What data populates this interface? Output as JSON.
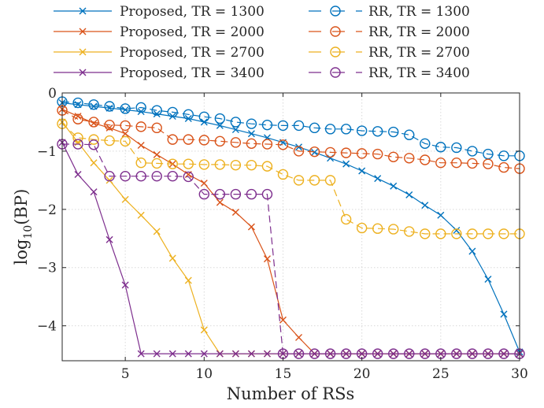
{
  "chart_data": {
    "type": "line",
    "title": "",
    "xlabel": "Number of RSs",
    "ylabel": "log10(BP)",
    "ylabel_base": "log",
    "ylabel_sub": "10",
    "ylabel_arg": "(BP)",
    "xlim": [
      1,
      30
    ],
    "ylim": [
      -4.6,
      0
    ],
    "xticks": [
      5,
      10,
      15,
      20,
      25,
      30
    ],
    "yticks": [
      0,
      -1,
      -2,
      -3,
      -4
    ],
    "ytick_labels": [
      "0",
      "−1",
      "−2",
      "−3",
      "−4"
    ],
    "grid": true,
    "legend_position": "top, two columns above the plot",
    "x": [
      1,
      2,
      3,
      4,
      5,
      6,
      7,
      8,
      9,
      10,
      11,
      12,
      13,
      14,
      15,
      16,
      17,
      18,
      19,
      20,
      21,
      22,
      23,
      24,
      25,
      26,
      27,
      28,
      29,
      30
    ],
    "series": [
      {
        "name": "Proposed, TR = 1300",
        "color": "#0072BD",
        "marker": "x",
        "style": "solid",
        "values": [
          -0.17,
          -0.2,
          -0.23,
          -0.26,
          -0.29,
          -0.32,
          -0.36,
          -0.4,
          -0.44,
          -0.5,
          -0.56,
          -0.63,
          -0.7,
          -0.77,
          -0.85,
          -0.93,
          -1.02,
          -1.12,
          -1.22,
          -1.34,
          -1.47,
          -1.6,
          -1.75,
          -1.93,
          -2.1,
          -2.36,
          -2.72,
          -3.2,
          -3.8,
          -4.45
        ]
      },
      {
        "name": "Proposed, TR = 2000",
        "color": "#D95319",
        "marker": "x",
        "style": "solid",
        "values": [
          -0.28,
          -0.4,
          -0.52,
          -0.6,
          -0.7,
          -0.9,
          -1.06,
          -1.22,
          -1.4,
          -1.55,
          -1.88,
          -2.05,
          -2.3,
          -2.85,
          -3.9,
          -4.2,
          -4.48,
          -4.48,
          -4.48,
          -4.48,
          -4.48,
          -4.48,
          -4.48,
          -4.48,
          -4.48,
          -4.48,
          -4.48,
          -4.48,
          -4.48,
          -4.48
        ]
      },
      {
        "name": "Proposed, TR = 2700",
        "color": "#EDB120",
        "marker": "x",
        "style": "solid",
        "values": [
          -0.5,
          -0.85,
          -1.2,
          -1.5,
          -1.83,
          -2.1,
          -2.38,
          -2.84,
          -3.22,
          -4.07,
          -4.48,
          -4.48,
          -4.48,
          -4.48,
          -4.48,
          -4.48,
          -4.48,
          -4.48,
          -4.48,
          -4.48,
          -4.48,
          -4.48,
          -4.48,
          -4.48,
          -4.48,
          -4.48,
          -4.48,
          -4.48,
          -4.48,
          -4.48
        ]
      },
      {
        "name": "Proposed, TR = 3400",
        "color": "#7E2F8E",
        "marker": "x",
        "style": "solid",
        "values": [
          -0.85,
          -1.4,
          -1.7,
          -2.52,
          -3.3,
          -4.48,
          -4.48,
          -4.48,
          -4.48,
          -4.48,
          -4.48,
          -4.48,
          -4.48,
          -4.48,
          -4.48,
          -4.48,
          -4.48,
          -4.48,
          -4.48,
          -4.48,
          -4.48,
          -4.48,
          -4.48,
          -4.48,
          -4.48,
          -4.48,
          -4.48,
          -4.48,
          -4.48,
          -4.48
        ]
      },
      {
        "name": "RR, TR = 1300",
        "color": "#0072BD",
        "marker": "o",
        "style": "dash",
        "values": [
          -0.15,
          -0.17,
          -0.2,
          -0.23,
          -0.27,
          -0.25,
          -0.3,
          -0.33,
          -0.37,
          -0.41,
          -0.44,
          -0.5,
          -0.53,
          -0.55,
          -0.56,
          -0.56,
          -0.6,
          -0.62,
          -0.62,
          -0.65,
          -0.66,
          -0.67,
          -0.72,
          -0.87,
          -0.93,
          -0.94,
          -1.0,
          -1.05,
          -1.08,
          -1.08
        ]
      },
      {
        "name": "RR, TR = 2000",
        "color": "#D95319",
        "marker": "o",
        "style": "dash",
        "values": [
          -0.3,
          -0.45,
          -0.5,
          -0.55,
          -0.56,
          -0.58,
          -0.6,
          -0.8,
          -0.8,
          -0.81,
          -0.83,
          -0.85,
          -0.87,
          -0.88,
          -0.89,
          -1.0,
          -1.01,
          -1.02,
          -1.03,
          -1.04,
          -1.05,
          -1.1,
          -1.12,
          -1.15,
          -1.2,
          -1.2,
          -1.21,
          -1.22,
          -1.28,
          -1.3
        ]
      },
      {
        "name": "RR, TR = 2700",
        "color": "#EDB120",
        "marker": "o",
        "style": "dash",
        "values": [
          -0.53,
          -0.77,
          -0.8,
          -0.82,
          -0.83,
          -1.2,
          -1.21,
          -1.22,
          -1.22,
          -1.23,
          -1.23,
          -1.24,
          -1.24,
          -1.26,
          -1.4,
          -1.5,
          -1.5,
          -1.5,
          -2.17,
          -2.32,
          -2.33,
          -2.34,
          -2.38,
          -2.42,
          -2.42,
          -2.42,
          -2.42,
          -2.42,
          -2.42,
          -2.42
        ]
      },
      {
        "name": "RR, TR = 3400",
        "color": "#7E2F8E",
        "marker": "o",
        "style": "dash",
        "values": [
          -0.88,
          -0.88,
          -0.89,
          -1.43,
          -1.43,
          -1.43,
          -1.43,
          -1.43,
          -1.44,
          -1.74,
          -1.74,
          -1.74,
          -1.74,
          -1.74,
          -4.48,
          -4.48,
          -4.48,
          -4.48,
          -4.48,
          -4.48,
          -4.48,
          -4.48,
          -4.48,
          -4.48,
          -4.48,
          -4.48,
          -4.48,
          -4.48,
          -4.48,
          -4.48
        ]
      }
    ]
  }
}
